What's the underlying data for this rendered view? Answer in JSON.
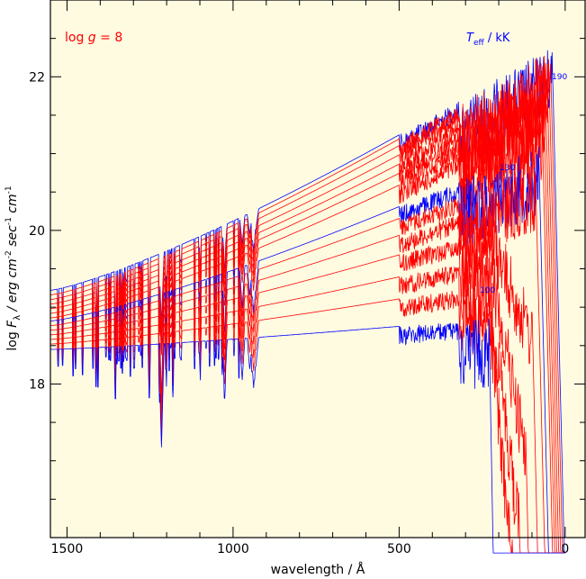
{
  "chart_data": {
    "type": "line",
    "xlabel": "wavelength / Å",
    "ylabel_parts": {
      "pre": "log ",
      "F": "F",
      "sub": "λ",
      "units": " / erg cm",
      "exp1": "-2",
      "sec": " sec",
      "exp2": "-1",
      "cm": " cm",
      "exp3": "-1"
    },
    "annotation_logg": "log g = 8",
    "annotation_logg_parts": {
      "pre": "log ",
      "g": "g",
      "post": " = 8"
    },
    "annotation_teff_parts": {
      "T": "T",
      "sub": "eff",
      "post": "  / kK"
    },
    "curve_labels": [
      "190",
      "130",
      "100"
    ],
    "xlim": [
      1550,
      -60
    ],
    "ylim": [
      16,
      23
    ],
    "x_ticks": [
      1500,
      1000,
      500,
      0
    ],
    "x_tick_labels": [
      "1500",
      "1000",
      "500",
      "0"
    ],
    "y_ticks": [
      18,
      20,
      22
    ],
    "y_tick_labels": [
      "18",
      "20",
      "22"
    ],
    "colors": {
      "background": "#fffbe1",
      "red": "#ff0000",
      "blue": "#0000ff",
      "axes": "#000000"
    },
    "series": [
      {
        "name": "190",
        "color": "blue",
        "y1550": 19.22,
        "ypeak": 22.25,
        "cut": 40
      },
      {
        "name": "",
        "color": "red",
        "y1550": 19.16,
        "ypeak": 22.2,
        "cut": 45
      },
      {
        "name": "",
        "color": "red",
        "y1550": 19.1,
        "ypeak": 22.1,
        "cut": 50
      },
      {
        "name": "",
        "color": "red",
        "y1550": 19.04,
        "ypeak": 21.95,
        "cut": 55
      },
      {
        "name": "",
        "color": "red",
        "y1550": 18.98,
        "ypeak": 21.8,
        "cut": 60
      },
      {
        "name": "",
        "color": "red",
        "y1550": 18.92,
        "ypeak": 21.65,
        "cut": 65
      },
      {
        "name": "",
        "color": "red",
        "y1550": 18.86,
        "ypeak": 21.45,
        "cut": 70
      },
      {
        "name": "130",
        "color": "blue",
        "y1550": 18.82,
        "ypeak": 21.05,
        "cut": 80
      },
      {
        "name": "",
        "color": "red",
        "y1550": 18.76,
        "ypeak": 20.85,
        "cut": 90
      },
      {
        "name": "",
        "color": "red",
        "y1550": 18.7,
        "ypeak": 20.55,
        "cut": 100
      },
      {
        "name": "",
        "color": "red",
        "y1550": 18.64,
        "ypeak": 20.2,
        "cut": 120
      },
      {
        "name": "",
        "color": "red",
        "y1550": 18.58,
        "ypeak": 19.8,
        "cut": 140
      },
      {
        "name": "",
        "color": "red",
        "y1550": 18.52,
        "ypeak": 19.4,
        "cut": 160
      },
      {
        "name": "100",
        "color": "blue",
        "y1550": 18.45,
        "ypeak": 18.9,
        "cut": 230
      }
    ]
  }
}
